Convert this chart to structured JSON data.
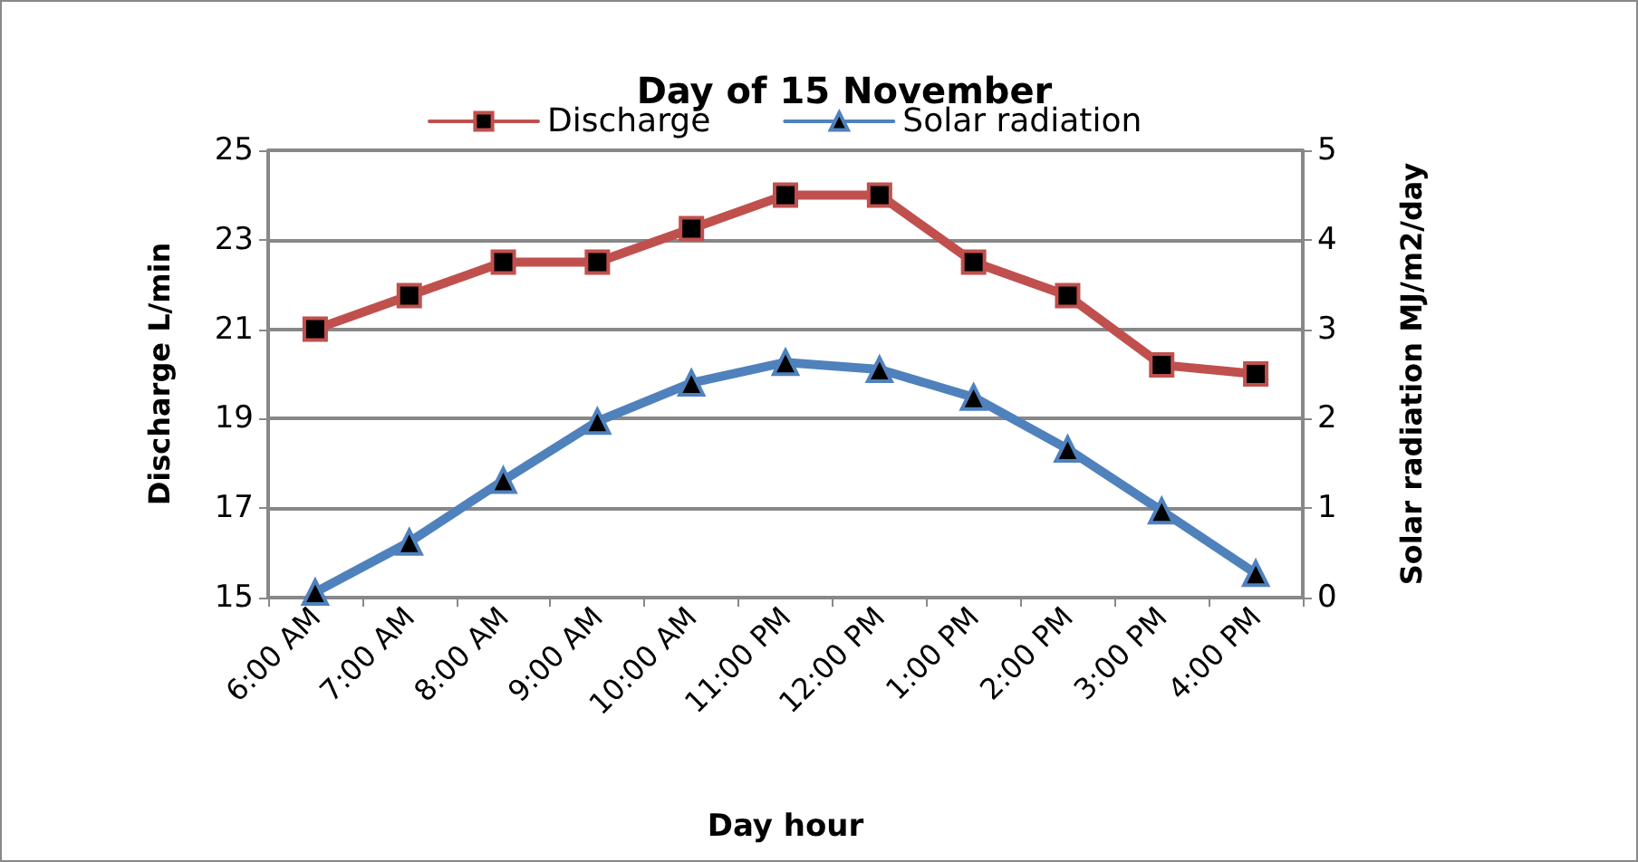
{
  "chart_data": {
    "type": "line",
    "title": "Day of 15 November",
    "xlabel": "Day hour",
    "ylabel": "Discharge L/min",
    "y2label": "Solar radiation MJ/m2/day",
    "categories": [
      "6:00 AM",
      "7:00 AM",
      "8:00 AM",
      "9:00 AM",
      "10:00 AM",
      "11:00 PM",
      "12:00 PM",
      "1:00 PM",
      "2:00 PM",
      "3:00 PM",
      "4:00 PM"
    ],
    "series": [
      {
        "name": "Discharge",
        "color": "#c0504d",
        "marker": "square",
        "values": [
          21,
          21.75,
          22.5,
          22.5,
          23.25,
          24,
          24,
          22.5,
          21.75,
          20.2,
          20
        ]
      },
      {
        "name": "Solar radiation",
        "color": "#4f81bd",
        "marker": "triangle",
        "axis": "y2",
        "values": [
          0.06,
          0.62,
          1.31,
          1.97,
          2.4,
          2.63,
          2.55,
          2.24,
          1.66,
          0.97,
          0.27
        ]
      }
    ],
    "ylim": [
      15,
      25
    ],
    "yticks": [
      15,
      17,
      19,
      21,
      23,
      25
    ],
    "y2lim": [
      0,
      5
    ],
    "y2ticks": [
      0,
      1,
      2,
      3,
      4,
      5
    ],
    "grid": "y",
    "legend": "top"
  }
}
